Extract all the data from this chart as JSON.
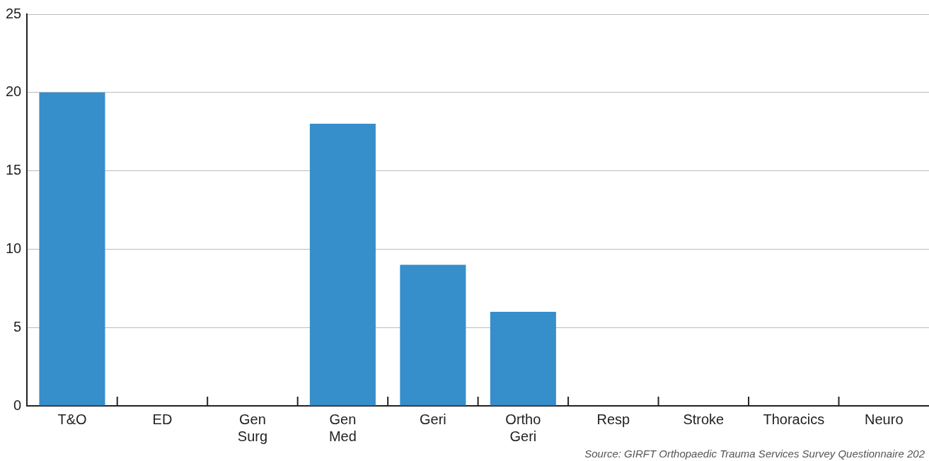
{
  "chart_data": {
    "type": "bar",
    "categories": [
      "T&O",
      "ED",
      "Gen Surg",
      "Gen Med",
      "Geri",
      "Ortho Geri",
      "Resp",
      "Stroke",
      "Thoracics",
      "Neuro"
    ],
    "values": [
      20,
      0,
      0,
      18,
      9,
      6,
      0,
      0,
      0,
      0
    ],
    "color": "#368ecb",
    "ylim": [
      0,
      25
    ],
    "yticks": [
      0,
      5,
      10,
      15,
      20,
      25
    ],
    "grid": "y",
    "annotations": [
      "Source: GIRFT Orthopaedic Trauma Services Survey Questionnaire 202"
    ]
  }
}
